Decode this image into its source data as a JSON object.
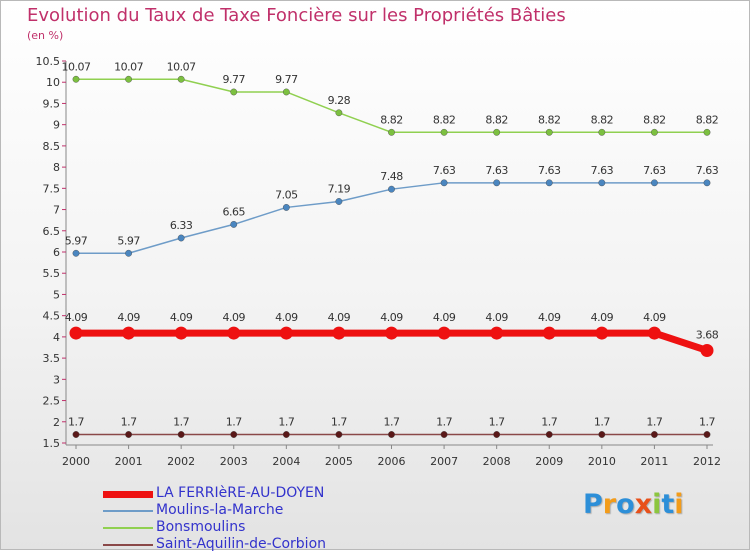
{
  "chart_data": {
    "type": "line",
    "title": "Evolution du Taux de Taxe Foncière sur les Propriétés Bâties",
    "ylabel": "(en %)",
    "xlabel": "",
    "categories": [
      "2000",
      "2001",
      "2002",
      "2003",
      "2004",
      "2005",
      "2006",
      "2007",
      "2008",
      "2009",
      "2010",
      "2011",
      "2012"
    ],
    "y_ticks": [
      "1.5",
      "2",
      "2.5",
      "3",
      "3.5",
      "4",
      "4.5",
      "5",
      "5.5",
      "6",
      "6.5",
      "7",
      "7.5",
      "8",
      "8.5",
      "9",
      "9.5",
      "10",
      "10.5"
    ],
    "ylim": [
      1.5,
      10.5
    ],
    "series": [
      {
        "name": "Bonsmoulins",
        "color": "#90d050",
        "marker": "#7cc040",
        "values": [
          10.07,
          10.07,
          10.07,
          9.77,
          9.77,
          9.28,
          8.82,
          8.82,
          8.82,
          8.82,
          8.82,
          8.82,
          8.82
        ],
        "labels": [
          "10.07",
          "10.07",
          "10.07",
          "9.77",
          "9.77",
          "9.28",
          "8.82",
          "8.82",
          "8.82",
          "8.82",
          "8.82",
          "8.82",
          "8.82"
        ]
      },
      {
        "name": "Moulins-la-Marche",
        "color": "#6e9cc8",
        "marker": "#4a86c0",
        "values": [
          5.97,
          5.97,
          6.33,
          6.65,
          7.05,
          7.19,
          7.48,
          7.63,
          7.63,
          7.63,
          7.63,
          7.63,
          7.63
        ],
        "labels": [
          "5.97",
          "5.97",
          "6.33",
          "6.65",
          "7.05",
          "7.19",
          "7.48",
          "7.63",
          "7.63",
          "7.63",
          "7.63",
          "7.63",
          "7.63"
        ]
      },
      {
        "name": "LA FERRIèRE-AU-DOYEN",
        "color": "#ee1111",
        "marker": "#ee1111",
        "values": [
          4.09,
          4.09,
          4.09,
          4.09,
          4.09,
          4.09,
          4.09,
          4.09,
          4.09,
          4.09,
          4.09,
          4.09,
          3.68
        ],
        "labels": [
          "4.09",
          "4.09",
          "4.09",
          "4.09",
          "4.09",
          "4.09",
          "4.09",
          "4.09",
          "4.09",
          "4.09",
          "4.09",
          "4.09",
          "3.68"
        ]
      },
      {
        "name": "Saint-Aquilin-de-Corbion",
        "color": "#8a4848",
        "marker": "#5a1818",
        "values": [
          1.7,
          1.7,
          1.7,
          1.7,
          1.7,
          1.7,
          1.7,
          1.7,
          1.7,
          1.7,
          1.7,
          1.7,
          1.7
        ],
        "labels": [
          "1.7",
          "1.7",
          "1.7",
          "1.7",
          "1.7",
          "1.7",
          "1.7",
          "1.7",
          "1.7",
          "1.7",
          "1.7",
          "1.7",
          "1.7"
        ]
      }
    ],
    "legend": [
      {
        "name": "LA FERRIèRE-AU-DOYEN",
        "color": "#ee1111",
        "text_color": "#3333cc"
      },
      {
        "name": "Moulins-la-Marche",
        "color": "#6e9cc8",
        "text_color": "#3333cc"
      },
      {
        "name": "Bonsmoulins",
        "color": "#90d050",
        "text_color": "#3333cc"
      },
      {
        "name": "Saint-Aquilin-de-Corbion",
        "color": "#8a4848",
        "text_color": "#3333cc"
      }
    ]
  },
  "logo": {
    "letters": [
      "P",
      "r",
      "o",
      "x",
      "i",
      "t",
      "i"
    ],
    "colors": [
      "#2d8fd8",
      "#f39c1a",
      "#2d8fd8",
      "#e8501a",
      "#8cc63f",
      "#2d8fd8",
      "#f39c1a"
    ]
  }
}
